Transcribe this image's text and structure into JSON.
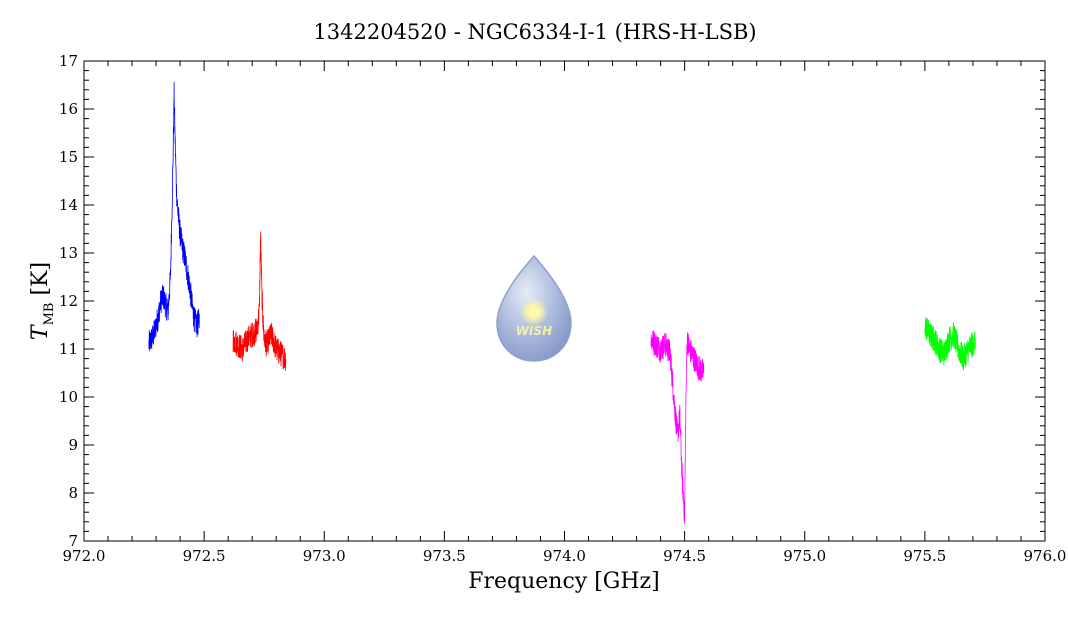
{
  "chart_data": {
    "type": "line",
    "title": "1342204520 - NGC6334-I-1 (HRS-H-LSB)",
    "xlabel": "Frequency [GHz]",
    "ylabel_main": "T",
    "ylabel_sub": "MB",
    "ylabel_unit": " [K]",
    "xlim": [
      972.0,
      976.0
    ],
    "ylim": [
      7,
      17
    ],
    "x_ticks": [
      972.0,
      972.5,
      973.0,
      973.5,
      974.0,
      974.5,
      975.0,
      975.5,
      976.0
    ],
    "x_tick_labels": [
      "972.0",
      "972.5",
      "973.0",
      "973.5",
      "974.0",
      "974.5",
      "975.0",
      "975.5",
      "976.0"
    ],
    "y_ticks": [
      7,
      8,
      9,
      10,
      11,
      12,
      13,
      14,
      15,
      16,
      17
    ],
    "y_tick_labels": [
      "7",
      "8",
      "9",
      "10",
      "11",
      "12",
      "13",
      "14",
      "15",
      "16",
      "17"
    ],
    "grid": false,
    "logo_text": "WISH",
    "series": [
      {
        "color": "#0000ff",
        "x": [
          972.27,
          972.29,
          972.31,
          972.32,
          972.33,
          972.34,
          972.35,
          972.36,
          972.37,
          972.375,
          972.38,
          972.385,
          972.39,
          972.4,
          972.41,
          972.42,
          972.43,
          972.44,
          972.45,
          972.46,
          972.47,
          972.48
        ],
        "y": [
          11.1,
          11.3,
          11.7,
          12.0,
          12.1,
          11.9,
          11.8,
          12.5,
          14.8,
          16.3,
          15.2,
          14.3,
          13.9,
          13.4,
          13.1,
          12.9,
          12.6,
          12.3,
          11.9,
          11.6,
          11.5,
          11.6
        ]
      },
      {
        "color": "#ff0000",
        "x": [
          972.62,
          972.64,
          972.66,
          972.68,
          972.7,
          972.72,
          972.73,
          972.735,
          972.74,
          972.745,
          972.75,
          972.76,
          972.78,
          972.8,
          972.82,
          972.84
        ],
        "y": [
          11.2,
          11.1,
          11.0,
          11.2,
          11.3,
          11.4,
          11.8,
          13.4,
          12.2,
          11.6,
          11.2,
          11.1,
          11.3,
          11.0,
          10.9,
          10.8
        ]
      },
      {
        "color": "#ff00ff",
        "x": [
          974.36,
          974.38,
          974.4,
          974.42,
          974.44,
          974.45,
          974.46,
          974.47,
          974.48,
          974.49,
          974.5,
          974.505,
          974.51,
          974.52,
          974.53,
          974.54,
          974.56,
          974.58
        ],
        "y": [
          11.2,
          11.1,
          11.0,
          11.1,
          10.9,
          10.3,
          9.7,
          9.2,
          9.6,
          8.3,
          7.5,
          9.8,
          11.2,
          11.0,
          10.9,
          10.8,
          10.6,
          10.5
        ]
      },
      {
        "color": "#00ff00",
        "x": [
          975.5,
          975.52,
          975.54,
          975.56,
          975.58,
          975.6,
          975.62,
          975.64,
          975.66,
          975.68,
          975.7,
          975.71
        ],
        "y": [
          11.5,
          11.3,
          11.2,
          11.0,
          10.9,
          11.2,
          11.3,
          11.0,
          10.8,
          11.0,
          11.1,
          11.2
        ]
      }
    ]
  }
}
